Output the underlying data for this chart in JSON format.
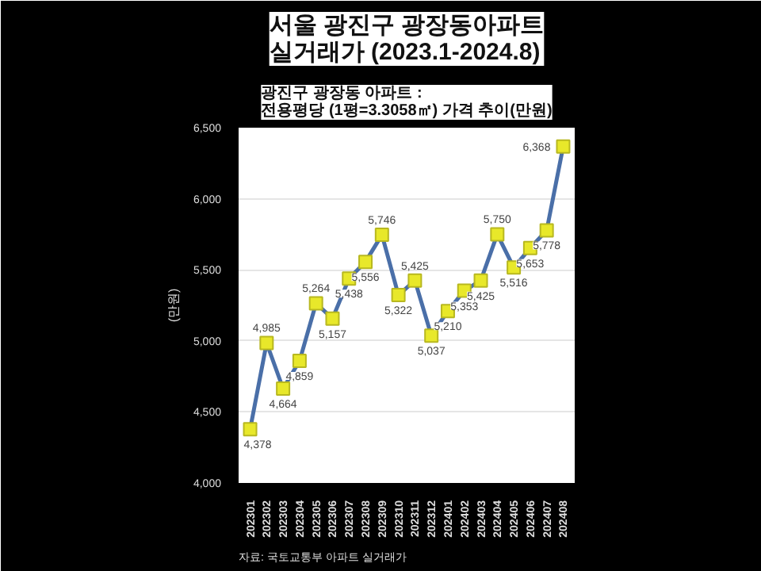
{
  "chart_data": {
    "type": "line",
    "title": "서울 광진구 광장동아파트\n실거래가 (2023.1-2024.8)",
    "subtitle": "광진구 광장동 아파트 :\n전용평당 (1평=3.3058㎡) 가격 추이(만원)",
    "ylabel": "(만원)",
    "categories": [
      "202301",
      "202302",
      "202303",
      "202304",
      "202305",
      "202306",
      "202307",
      "202308",
      "202309",
      "202310",
      "202311",
      "202312",
      "202401",
      "202402",
      "202403",
      "202404",
      "202405",
      "202406",
      "202407",
      "202408"
    ],
    "series": [
      {
        "color": "#4a6fa8",
        "values": [
          4378,
          4985,
          4664,
          4859,
          5264,
          5157,
          5438,
          5556,
          5746,
          5322,
          5425,
          5037,
          5210,
          5353,
          5425,
          5750,
          5516,
          5653,
          5778,
          6368
        ]
      }
    ],
    "ylim": [
      4000,
      6500
    ],
    "yticks": [
      {
        "value": 4000,
        "label": "4,000"
      },
      {
        "value": 4500,
        "label": "4,500"
      },
      {
        "value": 5000,
        "label": "5,000"
      },
      {
        "value": 5500,
        "label": "5,500"
      },
      {
        "value": 6000,
        "label": "6,000"
      },
      {
        "value": 6500,
        "label": "6,500"
      }
    ],
    "grid": "y",
    "marker": "square",
    "value_labels": [
      "4,378",
      "4,985",
      "4,664",
      "4,859",
      "5,264",
      "5,157",
      "5,438",
      "5,556",
      "5,746",
      "5,322",
      "5,425",
      "5,037",
      "5,210",
      "5,353",
      "5,425",
      "5,750",
      "5,516",
      "5,653",
      "5,778",
      "6,368"
    ],
    "annotations": [
      "자료: 국토교통부 아파트 실거래가"
    ]
  }
}
